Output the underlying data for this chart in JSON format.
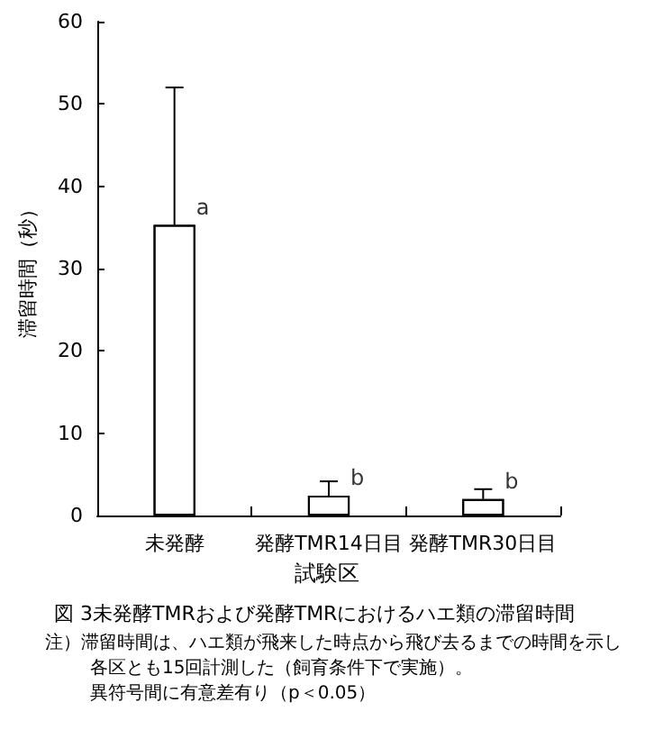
{
  "chart_data": {
    "type": "bar",
    "title": "図 3未発酵TMRおよび発酵TMRにおけるハエ類の滞留時間",
    "xlabel": "試験区",
    "ylabel": "滞留時間（秒）",
    "categories": [
      "未発酵",
      "発酵TMR14日目",
      "発酵TMR30日目"
    ],
    "values": [
      35.3,
      2.4,
      2.0
    ],
    "errors": [
      [
        35.3,
        52.0
      ],
      [
        2.4,
        4.15
      ],
      [
        2.0,
        3.2
      ]
    ],
    "color": "#ffffff",
    "ylim": [
      0,
      60
    ],
    "yticks": [
      0,
      10,
      20,
      30,
      40,
      50,
      60
    ],
    "grid": false,
    "annotations": [
      {
        "text": "a",
        "x": "未発酵",
        "y": 35.3
      },
      {
        "text": "b",
        "x": "発酵TMR14日目",
        "y": 2.4
      },
      {
        "text": "b",
        "x": "発酵TMR30日目",
        "y": 2.0
      },
      "注）滞留時間は、ハエ類が飛来した時点から飛び去るまでの時間を示し",
      "各区とも15回計測した（飼育条件下で実施）。",
      "異符号間に有意差有り（p＜0.05）"
    ]
  }
}
